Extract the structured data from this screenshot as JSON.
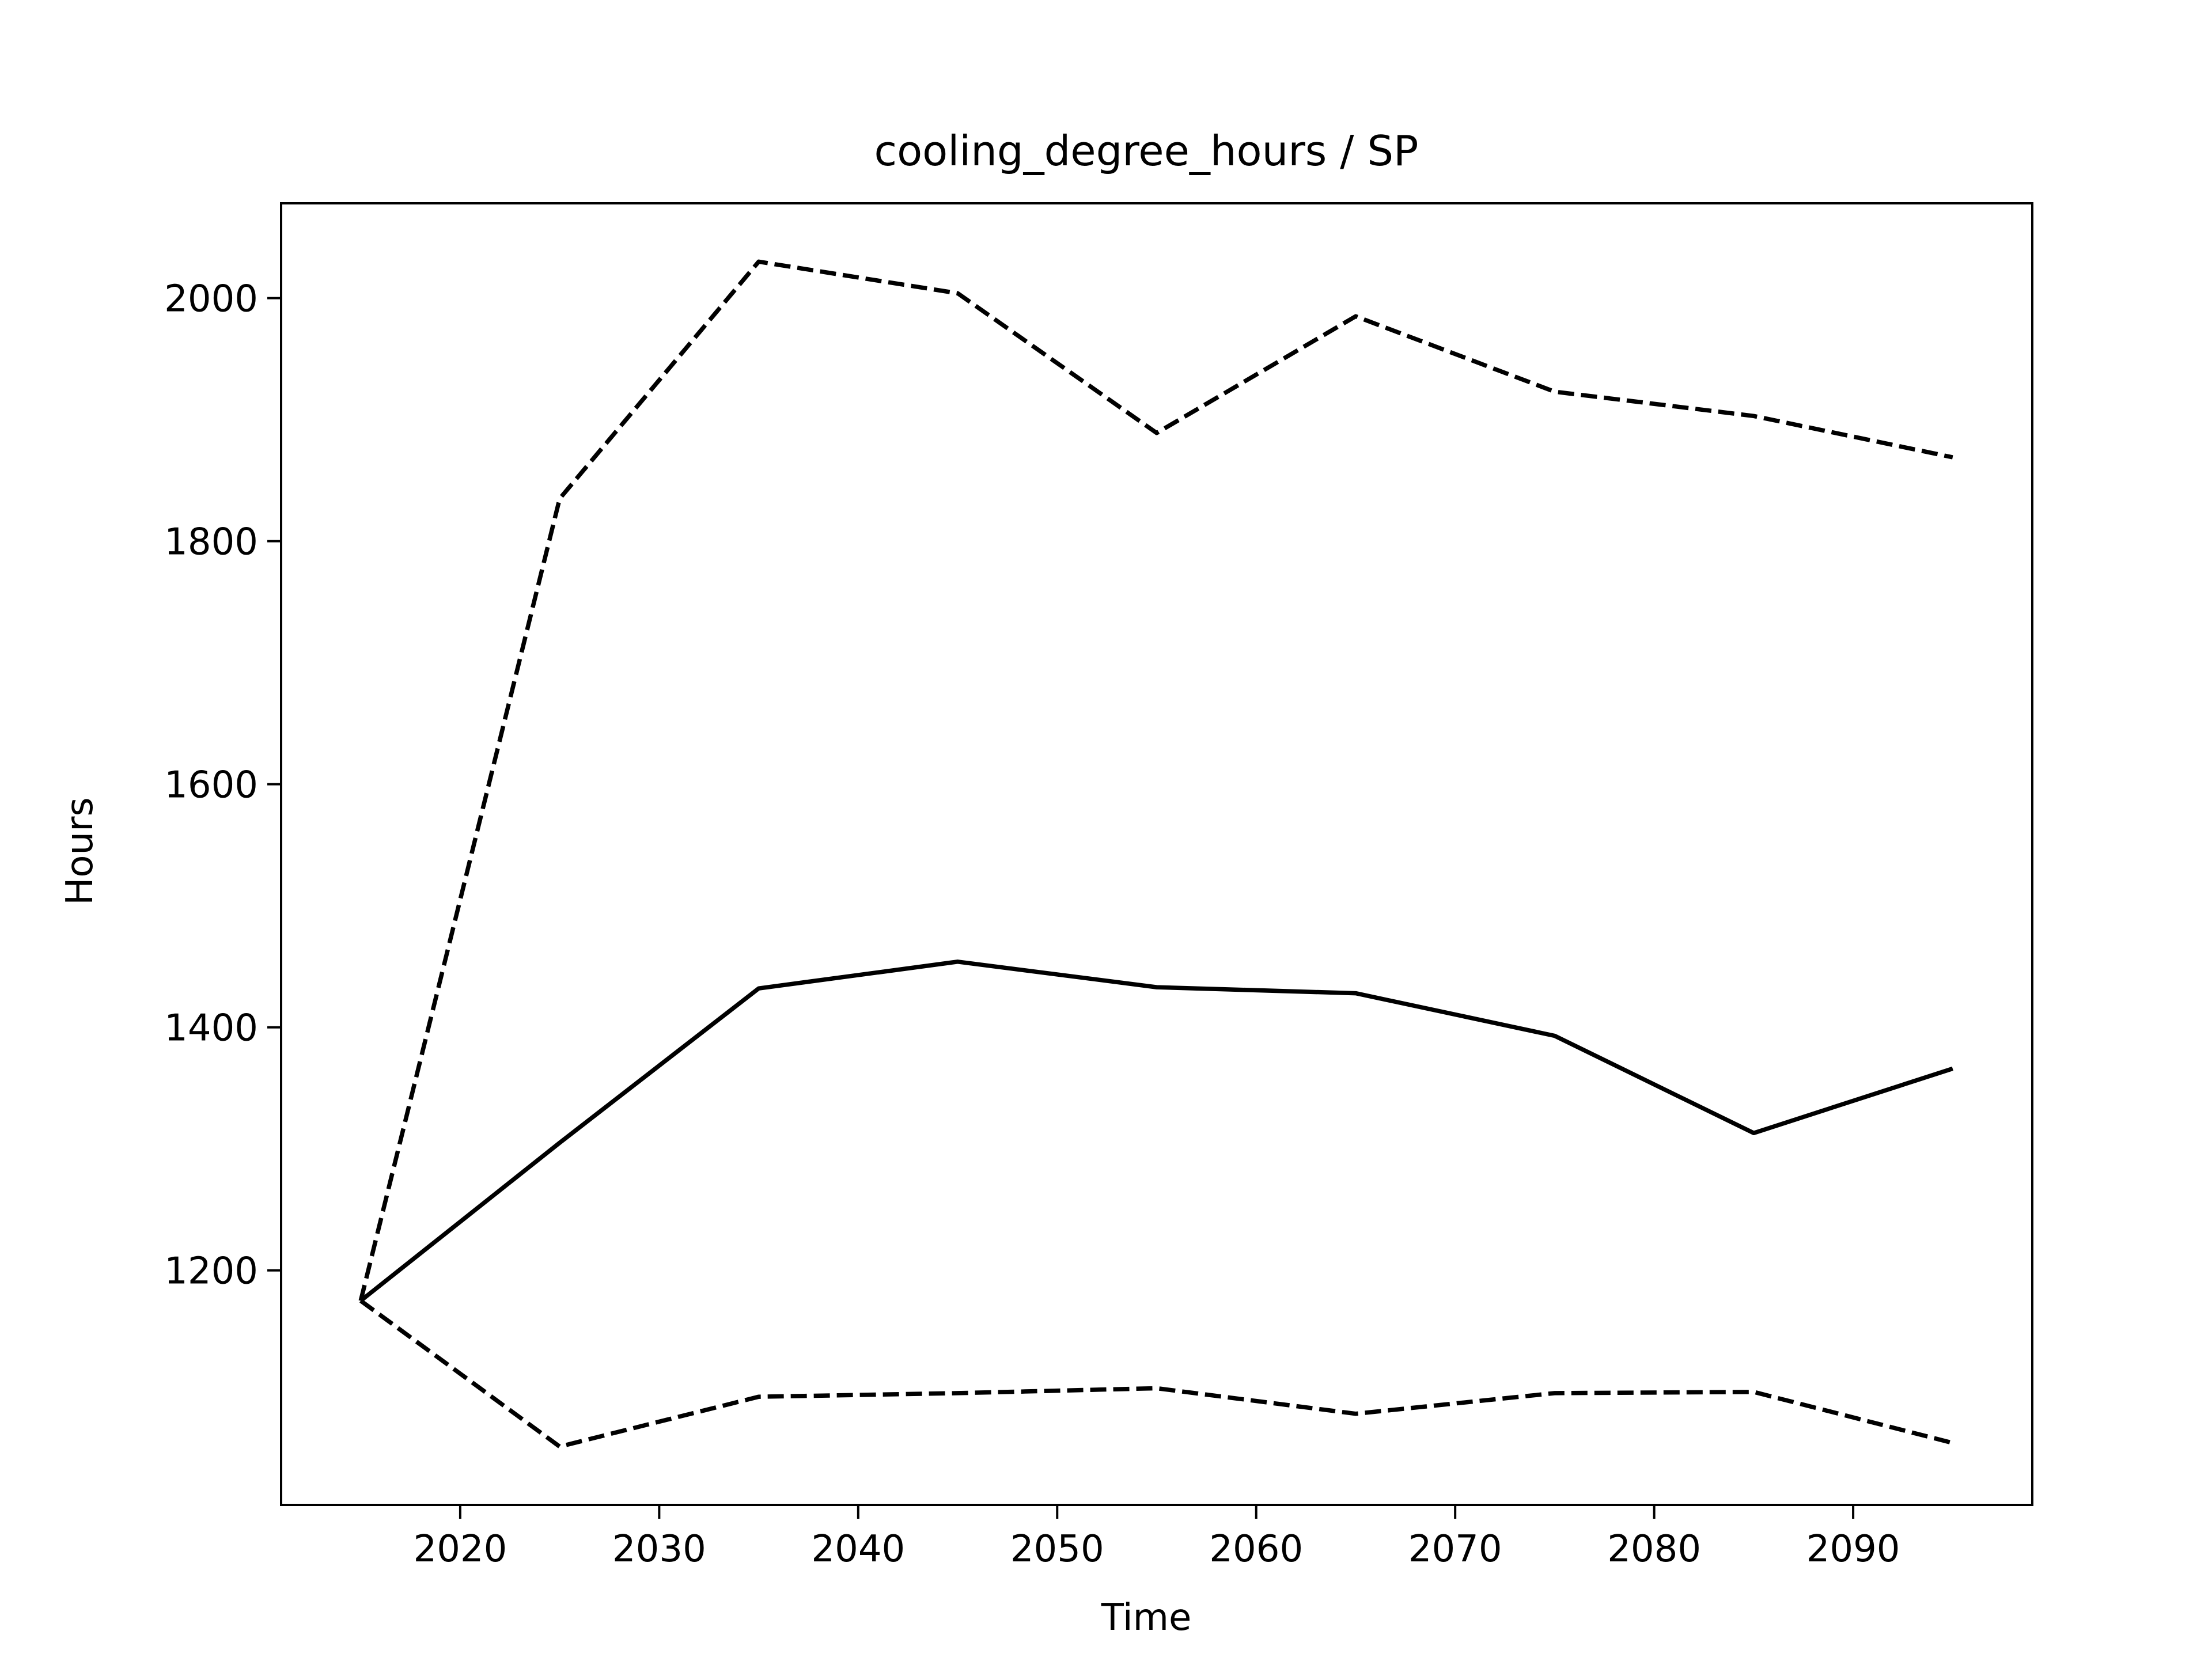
{
  "chart_data": {
    "type": "line",
    "title": "cooling_degree_hours / SP",
    "xlabel": "Time",
    "ylabel": "Hours",
    "x": [
      2015,
      2025,
      2035,
      2045,
      2055,
      2065,
      2075,
      2085,
      2095
    ],
    "series": [
      {
        "style": "solid",
        "values": [
          1175,
          1305,
          1432,
          1454,
          1433,
          1428,
          1393,
          1313,
          1366
        ]
      },
      {
        "style": "dashed",
        "values": [
          1175,
          1835,
          2030,
          2004,
          1889,
          1985,
          1923,
          1903,
          1869
        ]
      },
      {
        "style": "dashed",
        "values": [
          1175,
          1055,
          1096,
          1099,
          1103,
          1082,
          1099,
          1100,
          1058
        ]
      }
    ],
    "xticks": [
      "2020",
      "2030",
      "2040",
      "2050",
      "2060",
      "2070",
      "2080",
      "2090"
    ],
    "yticks": [
      "1200",
      "1400",
      "1600",
      "1800",
      "2000"
    ],
    "xlim": [
      2011,
      2099
    ],
    "ylim": [
      1007,
      2078
    ],
    "grid": false,
    "legend": false,
    "line_color": "#000000"
  }
}
